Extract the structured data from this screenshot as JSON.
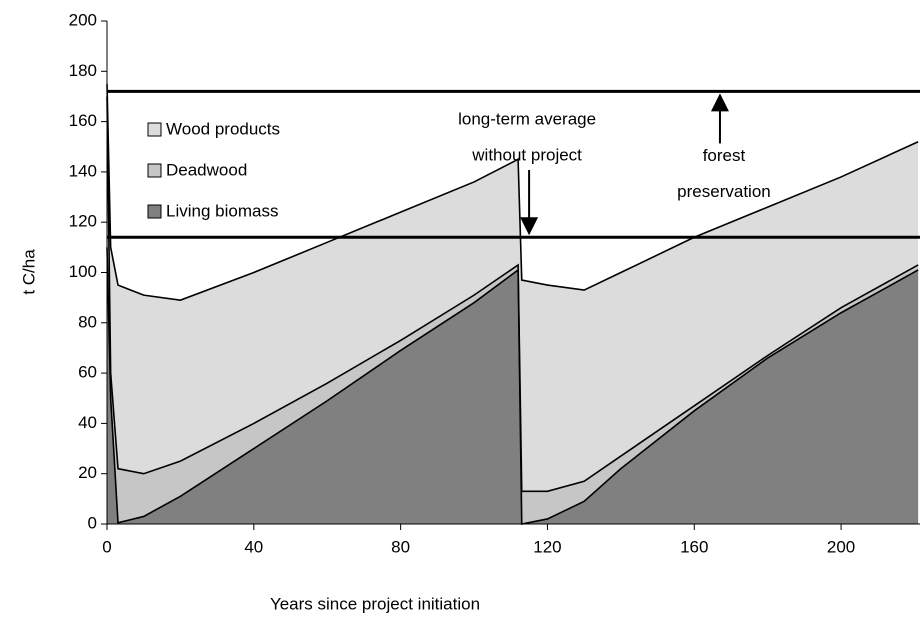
{
  "chart_data": {
    "type": "area",
    "x_label": "Years since project initiation",
    "y_label": "t C/ha",
    "stacked": true,
    "x": [
      0,
      1,
      3,
      10,
      20,
      40,
      60,
      80,
      100,
      112,
      113,
      120,
      130,
      140,
      160,
      180,
      200,
      221
    ],
    "series": [
      {
        "name": "Living biomass",
        "color": "#808080",
        "values": [
          110,
          50,
          0.5,
          3,
          11,
          30,
          49,
          69,
          88,
          101,
          0,
          2,
          9,
          22,
          45,
          66,
          84,
          101
        ]
      },
      {
        "name": "Deadwood",
        "color": "#c6c6c6",
        "values": [
          60,
          10,
          21.5,
          17,
          14,
          10,
          7,
          4,
          3,
          2,
          13,
          11,
          8,
          5,
          2,
          1,
          2,
          2
        ]
      },
      {
        "name": "Wood products",
        "color": "#dcdcdc",
        "values": [
          5,
          50,
          73,
          71,
          64,
          60,
          56,
          51,
          45,
          42,
          84,
          82,
          76,
          73,
          67,
          59,
          52,
          49
        ]
      }
    ],
    "reference_lines": [
      {
        "y": 172,
        "label": [
          "forest",
          "preservation"
        ],
        "x": 167
      },
      {
        "y": 114,
        "label": [
          "long-term average",
          "without project"
        ],
        "x": 115
      }
    ],
    "xlim": [
      0,
      221.5
    ],
    "xticks": [
      0,
      40,
      80,
      120,
      160,
      200
    ],
    "ylim": [
      0,
      200
    ],
    "yticks": [
      0,
      20,
      40,
      60,
      80,
      100,
      120,
      140,
      160,
      180,
      200
    ],
    "grid": false,
    "legend": "upper left"
  }
}
